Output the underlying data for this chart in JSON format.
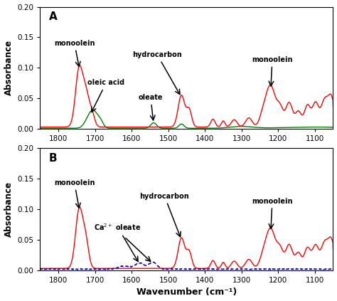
{
  "title_A": "A",
  "title_B": "B",
  "xlabel": "Wavenumber (cm⁻¹)",
  "ylabel": "Absorbance",
  "xlim": [
    1850,
    1050
  ],
  "ylim": [
    0.0,
    0.2
  ],
  "yticks": [
    0.0,
    0.05,
    0.1,
    0.15,
    0.2
  ],
  "xticks": [
    1800,
    1700,
    1600,
    1500,
    1400,
    1300,
    1200,
    1100
  ],
  "colors": {
    "red": "#FF0000",
    "green": "#008000",
    "blue_dashed": "#0000CD"
  },
  "figsize": [
    4.74,
    4.23
  ],
  "dpi": 100
}
